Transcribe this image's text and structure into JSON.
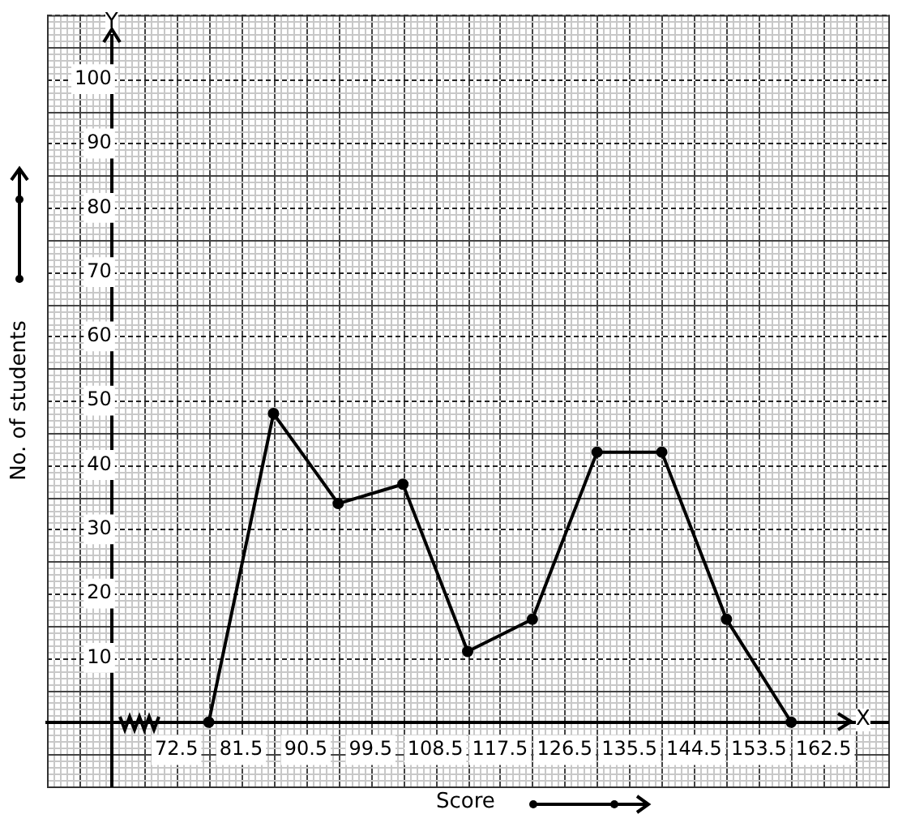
{
  "chart_data": {
    "type": "line",
    "xlabel": "Score",
    "ylabel": "No. of students",
    "annotations": [
      "Y",
      "X"
    ],
    "x": [
      77,
      86,
      95,
      104,
      113,
      122,
      131,
      140,
      149,
      158
    ],
    "series": [
      {
        "color": "#000000",
        "values": [
          0,
          48,
          34,
          37,
          11,
          16,
          42,
          42,
          16,
          0
        ]
      }
    ],
    "xlim": [
      54.5,
      171.5
    ],
    "ylim": [
      -10,
      110
    ],
    "xticks": [
      72.5,
      81.5,
      90.5,
      99.5,
      108.5,
      117.5,
      126.5,
      135.5,
      144.5,
      153.5,
      162.5
    ],
    "yticks": [
      10,
      20,
      30,
      40,
      50,
      60,
      70,
      80,
      90,
      100
    ],
    "grid": true,
    "marker": "circle",
    "line_style": "solid",
    "legend": false
  }
}
